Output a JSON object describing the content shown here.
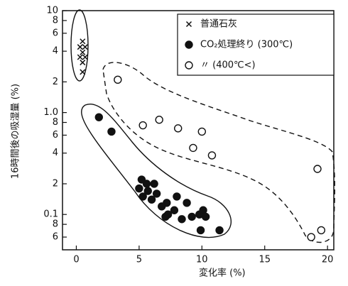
{
  "chart_data": {
    "type": "scatter",
    "xlabel": "変化率 (%)",
    "ylabel": "16時間後の吸湿量 (%)",
    "xlim": [
      -1.1,
      20.5
    ],
    "xticks": [
      0,
      5,
      10,
      15,
      20
    ],
    "ylim": [
      0.045,
      10
    ],
    "log_y": true,
    "yticks": [
      10,
      {
        "value": 8,
        "label": "8"
      },
      {
        "value": 6,
        "label": "6"
      },
      {
        "value": 4,
        "label": "4"
      },
      {
        "value": 2,
        "label": "2"
      },
      {
        "value": 1,
        "label": "1.0"
      },
      {
        "value": 0.8,
        "label": "8"
      },
      {
        "value": 0.6,
        "label": "6"
      },
      {
        "value": 0.4,
        "label": "4"
      },
      {
        "value": 0.2,
        "label": "2"
      },
      0.1,
      {
        "value": 0.08,
        "label": "8"
      },
      {
        "value": 0.06,
        "label": "6"
      }
    ],
    "legend": "upper right",
    "series": [
      {
        "name": "普通石灰",
        "marker": "x",
        "color": "#111",
        "x": [
          0.5,
          0.3,
          0.7,
          0.5,
          0.3,
          0.7,
          0.5,
          0.5
        ],
        "values": [
          5.0,
          4.4,
          4.4,
          3.9,
          3.5,
          3.5,
          3.1,
          2.5
        ]
      },
      {
        "name": "CO₂処理終り (300℃)",
        "marker": "filled",
        "color": "#111",
        "x": [
          1.8,
          2.8,
          5.2,
          5.6,
          6.2,
          5.0,
          5.7,
          6.4,
          5.3,
          6.0,
          7.2,
          8.0,
          8.8,
          7.3,
          6.8,
          7.8,
          8.4,
          9.2,
          9.8,
          10.1,
          10.3,
          9.9,
          11.4,
          7.1
        ],
        "values": [
          0.9,
          0.65,
          0.22,
          0.2,
          0.2,
          0.18,
          0.17,
          0.16,
          0.15,
          0.14,
          0.13,
          0.15,
          0.13,
          0.1,
          0.12,
          0.11,
          0.09,
          0.095,
          0.1,
          0.11,
          0.095,
          0.07,
          0.07,
          0.095
        ]
      },
      {
        "name": "〃 (400℃<)",
        "marker": "open",
        "color": "#111",
        "x": [
          3.3,
          5.3,
          6.6,
          8.1,
          9.3,
          10.0,
          10.8,
          19.2,
          18.7,
          19.5
        ],
        "values": [
          2.1,
          0.75,
          0.85,
          0.7,
          0.45,
          0.65,
          0.38,
          0.28,
          0.06,
          0.07
        ]
      }
    ]
  }
}
